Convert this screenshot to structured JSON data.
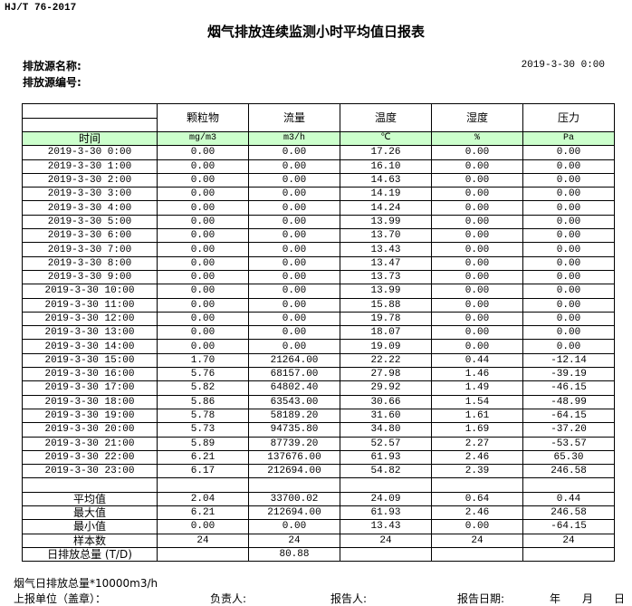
{
  "standard": "HJ/T  76-2017",
  "title": "烟气排放连续监测小时平均值日报表",
  "source_name_label": "排放源名称:",
  "source_id_label": "排放源编号:",
  "report_datetime": "2019-3-30  0:00",
  "table": {
    "headers": [
      "",
      "颗粒物",
      "流量",
      "温度",
      "湿度",
      "压力"
    ],
    "units": [
      "时间",
      "mg/m3",
      "m3/h",
      "℃",
      "%",
      "Pa"
    ],
    "rows": [
      [
        "2019-3-30  0:00",
        "0.00",
        "0.00",
        "17.26",
        "0.00",
        "0.00"
      ],
      [
        "2019-3-30  1:00",
        "0.00",
        "0.00",
        "16.10",
        "0.00",
        "0.00"
      ],
      [
        "2019-3-30  2:00",
        "0.00",
        "0.00",
        "14.63",
        "0.00",
        "0.00"
      ],
      [
        "2019-3-30  3:00",
        "0.00",
        "0.00",
        "14.19",
        "0.00",
        "0.00"
      ],
      [
        "2019-3-30  4:00",
        "0.00",
        "0.00",
        "14.24",
        "0.00",
        "0.00"
      ],
      [
        "2019-3-30  5:00",
        "0.00",
        "0.00",
        "13.99",
        "0.00",
        "0.00"
      ],
      [
        "2019-3-30  6:00",
        "0.00",
        "0.00",
        "13.70",
        "0.00",
        "0.00"
      ],
      [
        "2019-3-30  7:00",
        "0.00",
        "0.00",
        "13.43",
        "0.00",
        "0.00"
      ],
      [
        "2019-3-30  8:00",
        "0.00",
        "0.00",
        "13.47",
        "0.00",
        "0.00"
      ],
      [
        "2019-3-30  9:00",
        "0.00",
        "0.00",
        "13.73",
        "0.00",
        "0.00"
      ],
      [
        "2019-3-30 10:00",
        "0.00",
        "0.00",
        "13.99",
        "0.00",
        "0.00"
      ],
      [
        "2019-3-30 11:00",
        "0.00",
        "0.00",
        "15.88",
        "0.00",
        "0.00"
      ],
      [
        "2019-3-30 12:00",
        "0.00",
        "0.00",
        "19.78",
        "0.00",
        "0.00"
      ],
      [
        "2019-3-30 13:00",
        "0.00",
        "0.00",
        "18.07",
        "0.00",
        "0.00"
      ],
      [
        "2019-3-30 14:00",
        "0.00",
        "0.00",
        "19.09",
        "0.00",
        "0.00"
      ],
      [
        "2019-3-30 15:00",
        "1.70",
        "21264.00",
        "22.22",
        "0.44",
        "-12.14"
      ],
      [
        "2019-3-30 16:00",
        "5.76",
        "68157.00",
        "27.98",
        "1.46",
        "-39.19"
      ],
      [
        "2019-3-30 17:00",
        "5.82",
        "64802.40",
        "29.92",
        "1.49",
        "-46.15"
      ],
      [
        "2019-3-30 18:00",
        "5.86",
        "63543.00",
        "30.66",
        "1.54",
        "-48.99"
      ],
      [
        "2019-3-30 19:00",
        "5.78",
        "58189.20",
        "31.60",
        "1.61",
        "-64.15"
      ],
      [
        "2019-3-30 20:00",
        "5.73",
        "94735.80",
        "34.80",
        "1.69",
        "-37.20"
      ],
      [
        "2019-3-30 21:00",
        "5.89",
        "87739.20",
        "52.57",
        "2.27",
        "-53.57"
      ],
      [
        "2019-3-30 22:00",
        "6.21",
        "137676.00",
        "61.93",
        "2.46",
        "65.30"
      ],
      [
        "2019-3-30 23:00",
        "6.17",
        "212694.00",
        "54.82",
        "2.39",
        "246.58"
      ]
    ],
    "stats": [
      [
        "平均值",
        "2.04",
        "33700.02",
        "24.09",
        "0.64",
        "0.44"
      ],
      [
        "最大值",
        "6.21",
        "212694.00",
        "61.93",
        "2.46",
        "246.58"
      ],
      [
        "最小值",
        "0.00",
        "0.00",
        "13.43",
        "0.00",
        "-64.15"
      ],
      [
        "样本数",
        "24",
        "24",
        "24",
        "24",
        "24"
      ],
      [
        "日排放总量 (T/D)",
        "",
        "80.88",
        "",
        "",
        ""
      ]
    ]
  },
  "footer": {
    "note": "烟气日排放总量*10000m3/h",
    "unit_label": "上报单位（盖章）：",
    "responsible_label": "负责人:",
    "reporter_label": "报告人:",
    "date_label": "报告日期:",
    "year": "年",
    "month": "月",
    "day": "日"
  }
}
